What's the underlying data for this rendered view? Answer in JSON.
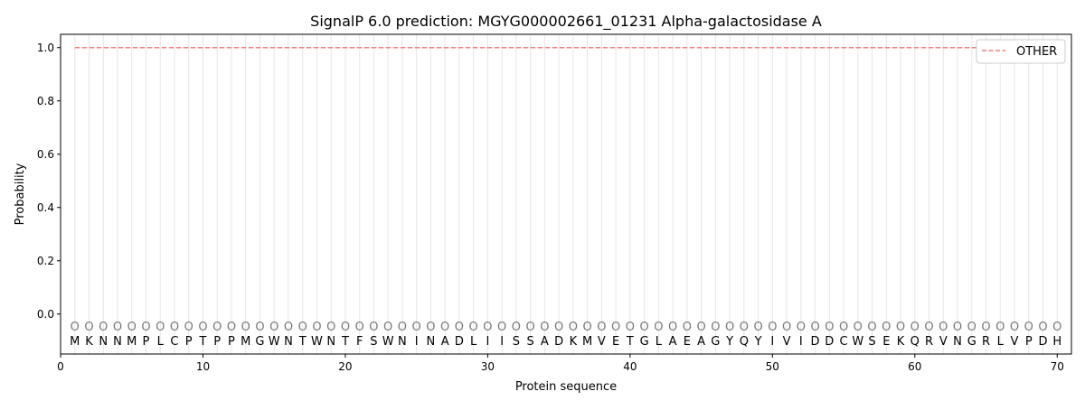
{
  "chart_data": {
    "type": "line",
    "title": "SignalP 6.0 prediction: MGYG000002661_01231 Alpha-galactosidase A",
    "xlabel": "Protein sequence",
    "ylabel": "Probability",
    "xlim": [
      0,
      71
    ],
    "ylim": [
      -0.15,
      1.05
    ],
    "xticks": [
      0,
      10,
      20,
      30,
      40,
      50,
      60,
      70
    ],
    "yticks": [
      0.0,
      0.2,
      0.4,
      0.6,
      0.8,
      1.0
    ],
    "ytick_labels": [
      "0.0",
      "0.2",
      "0.4",
      "0.6",
      "0.8",
      "1.0"
    ],
    "grid": "vertical lines at each residue",
    "legend_placement": "top-right",
    "sequence": "MKNNMPLCPTPPMGWNTWNTFSWNINADLIISSADKMVETGLAEAGYQYIVIDDCWSEKQRVNGRLVPDH",
    "predicted_labels": "OOOOOOOOOOOOOOOOOOOOOOOOOOOOOOOOOOOOOOOOOOOOOOOOOOOOOOOOOOOOOOOOOOOOOO",
    "series": [
      {
        "name": "OTHER",
        "color": "#f08080",
        "style": "dashed",
        "x_start": 1,
        "x_end": 70,
        "value": 1.0
      }
    ]
  }
}
